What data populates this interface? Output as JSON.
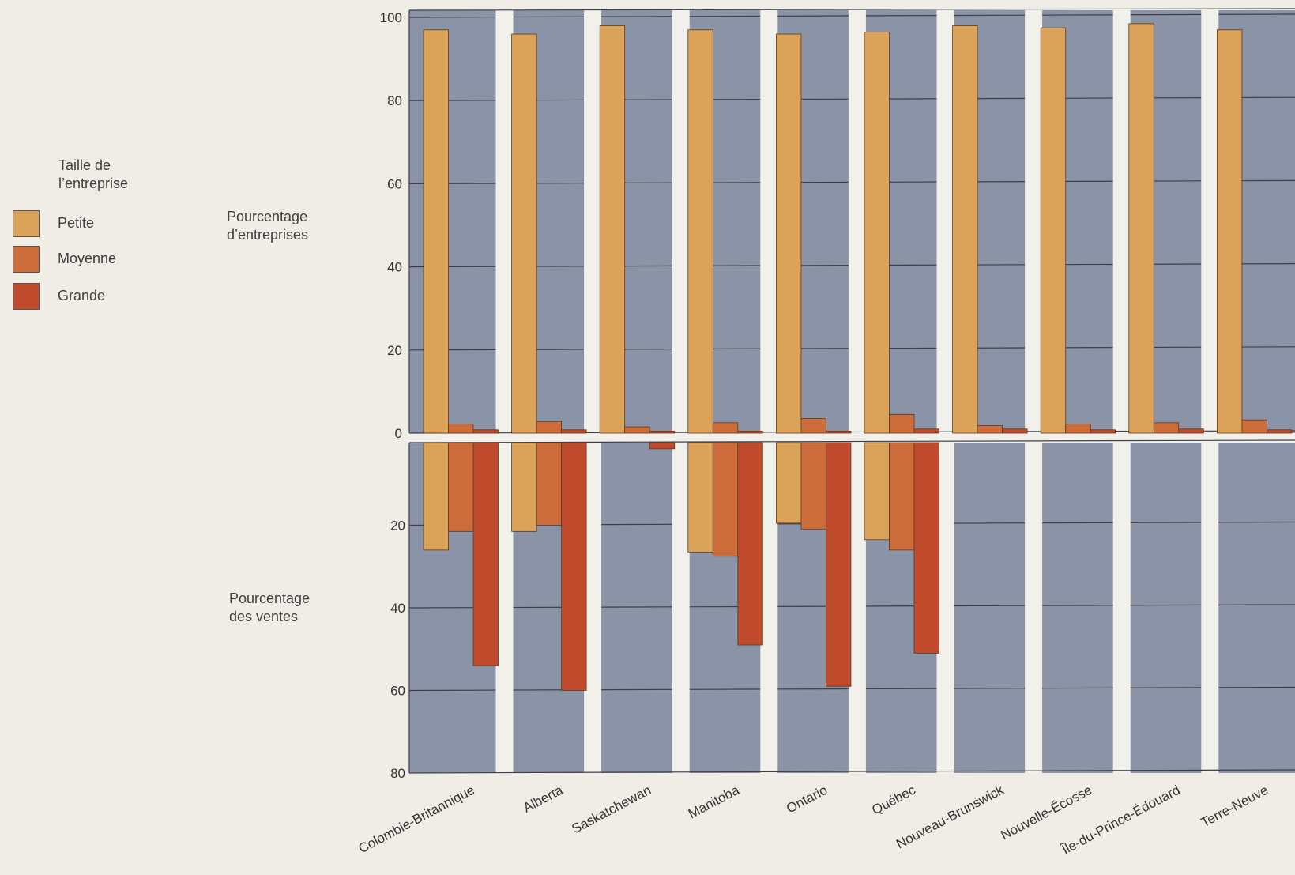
{
  "legend": {
    "title_line1": "Taille de",
    "title_line2": "l’entreprise",
    "items": [
      {
        "label": "Petite",
        "color": "#dba25a"
      },
      {
        "label": "Moyenne",
        "color": "#cc6c3a"
      },
      {
        "label": "Grande",
        "color": "#c04a2c"
      }
    ]
  },
  "labels": {
    "top_line1": "Pourcentage",
    "top_line2": "d’entreprises",
    "bottom_line1": "Pourcentage",
    "bottom_line2": "des ventes"
  },
  "colors": {
    "background": "#efede6",
    "plot": "#8b93a6",
    "separator": "#f1f0ea",
    "gridline": "#3b4048"
  },
  "chart_data": {
    "type": "bar",
    "categories": [
      "Colombie-Britannique",
      "Alberta",
      "Saskatchewan",
      "Manitoba",
      "Ontario",
      "Québec",
      "Nouveau-Brunswick",
      "Nouvelle-Écosse",
      "Île-du-Prince-Édouard",
      "Terre-Neuve"
    ],
    "panels": [
      {
        "label": "Pourcentage d’entreprises",
        "ylim": [
          0,
          100
        ],
        "yticks": [
          0,
          20,
          40,
          60,
          80,
          100
        ],
        "series": [
          {
            "name": "Petite",
            "values": [
              97,
              96,
              98,
              97,
              96,
              96.5,
              98,
              97.5,
              98.5,
              97
            ]
          },
          {
            "name": "Moyenne",
            "values": [
              2.2,
              2.8,
              1.5,
              2.5,
              3.5,
              4.5,
              1.8,
              2.2,
              2.5,
              3.2
            ]
          },
          {
            "name": "Grande",
            "values": [
              0.8,
              0.8,
              0.5,
              0.5,
              0.5,
              1.0,
              1.0,
              0.8,
              1.0,
              0.8
            ]
          }
        ]
      },
      {
        "label": "Pourcentage des ventes",
        "ylim": [
          0,
          80
        ],
        "yticks": [
          20,
          40,
          60,
          80
        ],
        "series": [
          {
            "name": "Petite",
            "values": [
              26,
              21.5,
              0,
              26.5,
              19.5,
              23.5,
              0,
              0,
              0,
              0
            ]
          },
          {
            "name": "Moyenne",
            "values": [
              21.5,
              20,
              0,
              27.5,
              21,
              26,
              0,
              0,
              0,
              0
            ]
          },
          {
            "name": "Grande",
            "values": [
              54,
              60,
              1.5,
              49,
              59,
              51,
              0,
              0,
              0,
              0
            ]
          }
        ]
      }
    ],
    "grid": true,
    "legend_position": "left"
  }
}
